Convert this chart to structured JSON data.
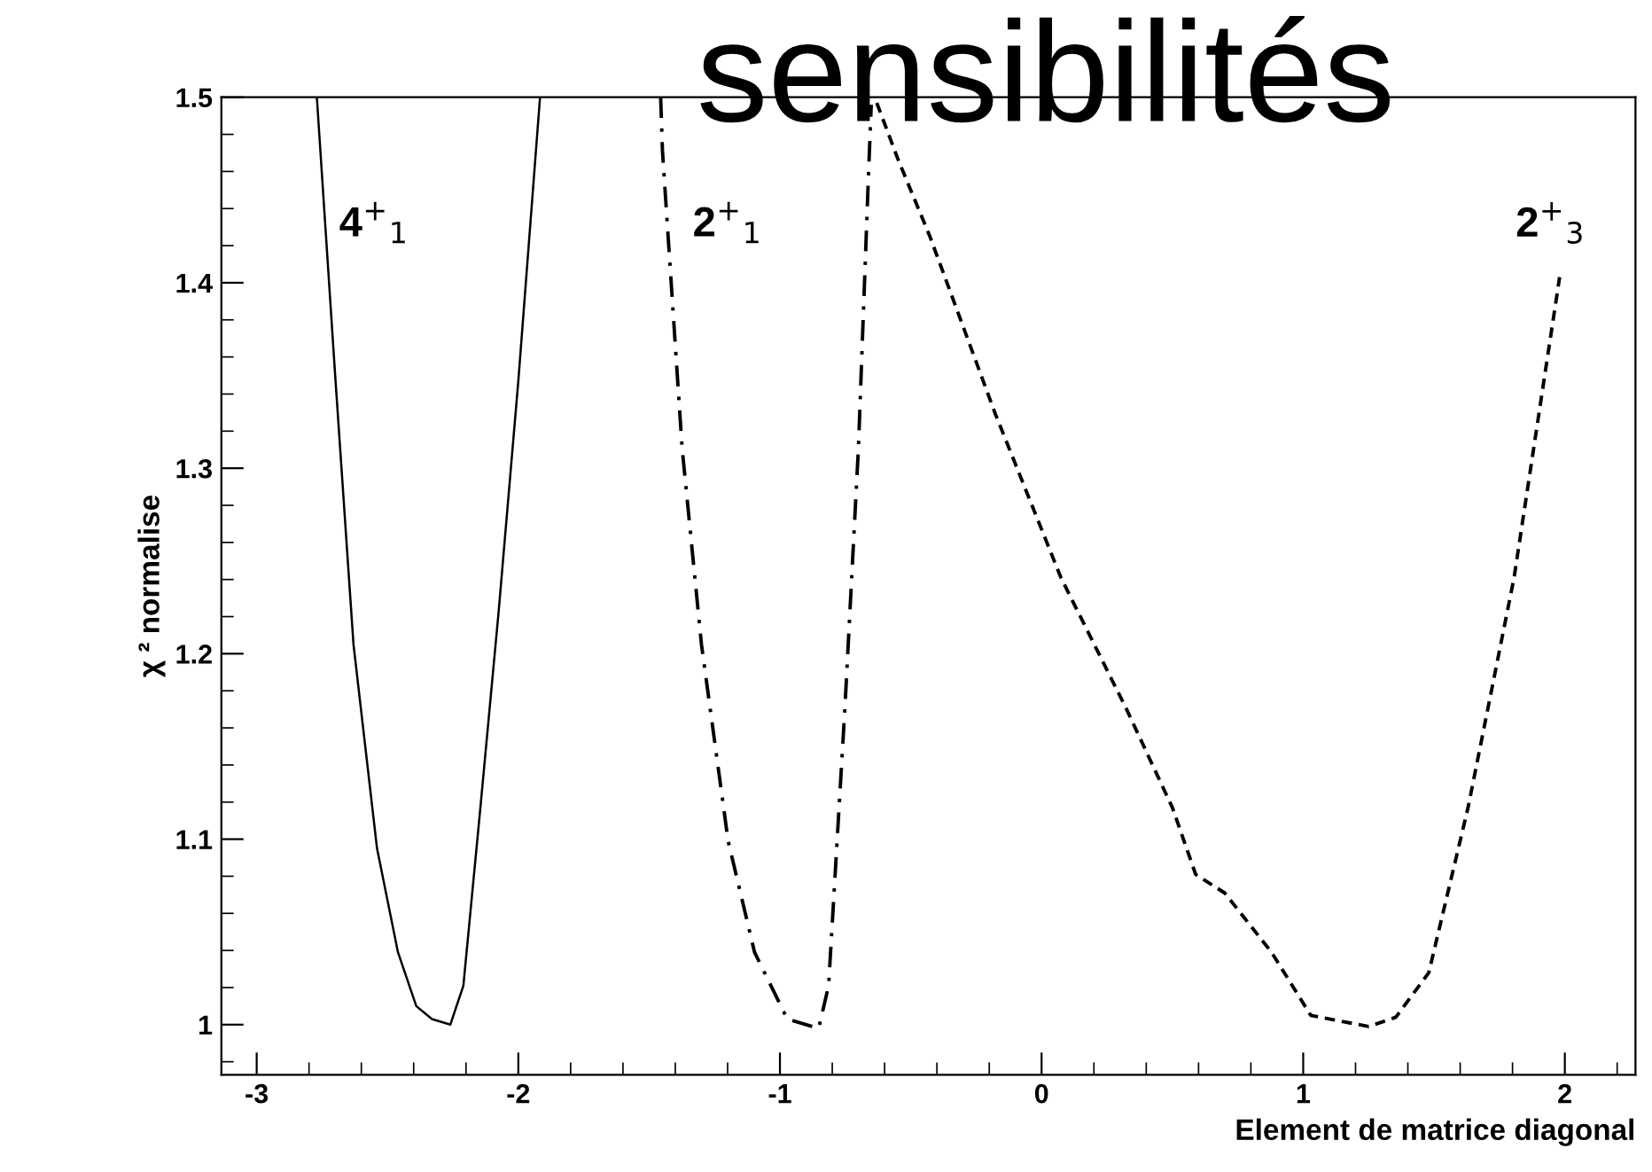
{
  "chart_data": {
    "type": "line",
    "title": "sensibilités",
    "xlabel": "Element de matrice diagonal",
    "ylabel": "χ ² normalise",
    "xlim": [
      -3.135,
      2.27
    ],
    "xticks": [
      -3,
      -2,
      -1,
      0,
      1,
      2
    ],
    "ylim": [
      0.973,
      1.5
    ],
    "yticks": [
      {
        "value": 1.0,
        "label": "1"
      },
      1.1,
      1.2,
      1.3,
      1.4,
      1.5
    ],
    "grid": false,
    "legend": false,
    "marker": "none",
    "series": [
      {
        "color": "#000000",
        "line_style": "solid",
        "x": [
          -2.77,
          -2.7,
          -2.63,
          -2.54,
          -2.46,
          -2.39,
          -2.33,
          -2.26,
          -2.21,
          -2.145,
          -2.075,
          -2.0,
          -1.917
        ],
        "values": [
          1.5,
          1.35,
          1.205,
          1.095,
          1.039,
          1.01,
          1.003,
          1.0,
          1.021,
          1.117,
          1.223,
          1.347,
          1.5
        ]
      },
      {
        "color": "#000000",
        "line_style": "dashdot",
        "x": [
          -1.456,
          -1.449,
          -1.374,
          -1.3,
          -1.198,
          -1.097,
          -0.972,
          -0.852,
          -0.814,
          -0.752,
          -0.7,
          -0.663,
          -0.651
        ],
        "values": [
          1.5,
          1.471,
          1.311,
          1.205,
          1.099,
          1.039,
          1.003,
          0.998,
          1.021,
          1.17,
          1.311,
          1.453,
          1.496
        ]
      },
      {
        "color": "#000000",
        "line_style": "dashed",
        "x": [
          -0.63,
          -0.55,
          -0.427,
          -0.176,
          0.074,
          0.325,
          0.5,
          0.589,
          0.7,
          0.879,
          1.029,
          1.25,
          1.354,
          1.48,
          1.63,
          1.806,
          1.98
        ],
        "values": [
          1.497,
          1.467,
          1.425,
          1.329,
          1.241,
          1.17,
          1.117,
          1.081,
          1.071,
          1.039,
          1.005,
          0.999,
          1.004,
          1.028,
          1.117,
          1.241,
          1.403
        ]
      }
    ],
    "annotations": [
      "4$^{+}$$_{1}$",
      "2$^{+}$$_{1}$",
      "2$^{+}$$_{3}$"
    ]
  }
}
